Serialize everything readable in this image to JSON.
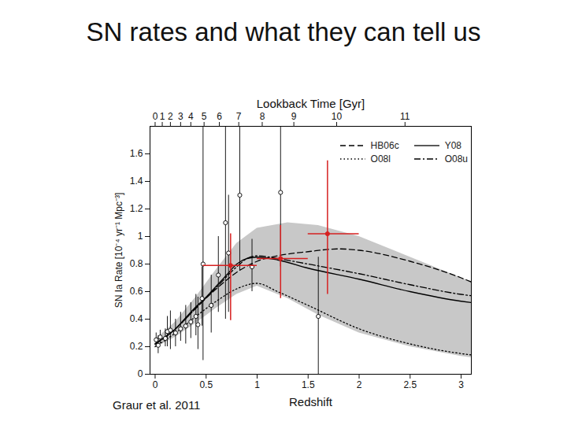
{
  "page_title": "SN rates and what they can tell us",
  "caption": "Graur et al. 2011",
  "chart_data": {
    "type": "line",
    "xlabel": "Redshift",
    "ylabel": "SN Ia Rate [10⁻⁴ yr⁻¹ Mpc⁻³]",
    "x2label": "Lookback Time [Gyr]",
    "xlim": [
      -0.05,
      3.1
    ],
    "xticks": [
      0,
      0.5,
      1,
      1.5,
      2,
      2.5,
      3
    ],
    "x2ticks": [
      {
        "value": 0,
        "label": "0"
      },
      {
        "value": 0.07,
        "label": "1"
      },
      {
        "value": 0.15,
        "label": "2"
      },
      {
        "value": 0.25,
        "label": "3"
      },
      {
        "value": 0.35,
        "label": "4"
      },
      {
        "value": 0.48,
        "label": "5"
      },
      {
        "value": 0.63,
        "label": "6"
      },
      {
        "value": 0.82,
        "label": "7"
      },
      {
        "value": 1.05,
        "label": "8"
      },
      {
        "value": 1.36,
        "label": "9"
      },
      {
        "value": 1.78,
        "label": "10"
      },
      {
        "value": 2.45,
        "label": "11"
      }
    ],
    "ylim": [
      0,
      1.8
    ],
    "yticks": [
      0,
      0.2,
      0.4,
      0.6,
      0.8,
      1,
      1.2,
      1.4,
      1.6
    ],
    "grid": false,
    "legend": "top-right",
    "band": {
      "color": "#c8c8c8",
      "x": [
        0,
        0.2,
        0.4,
        0.6,
        0.8,
        1.0,
        1.3,
        1.6,
        2.0,
        2.5,
        3.0,
        3.1
      ],
      "lower": [
        0.19,
        0.27,
        0.37,
        0.48,
        0.58,
        0.64,
        0.55,
        0.43,
        0.3,
        0.2,
        0.13,
        0.12
      ],
      "upper": [
        0.25,
        0.38,
        0.56,
        0.76,
        0.95,
        1.06,
        1.1,
        1.08,
        1.0,
        0.85,
        0.7,
        0.67
      ]
    },
    "series": [
      {
        "name": "HB06c",
        "color": "#000000",
        "line_style": "dashed",
        "x": [
          0,
          0.2,
          0.4,
          0.6,
          0.8,
          1.0,
          1.2,
          1.5,
          1.8,
          2.0,
          2.5,
          3.0,
          3.1
        ],
        "values": [
          0.22,
          0.33,
          0.48,
          0.62,
          0.74,
          0.82,
          0.86,
          0.89,
          0.91,
          0.9,
          0.82,
          0.7,
          0.67
        ]
      },
      {
        "name": "Y08",
        "color": "#000000",
        "line_style": "solid",
        "x": [
          0,
          0.1,
          0.2,
          0.3,
          0.4,
          0.5,
          0.6,
          0.7,
          0.8,
          0.9,
          1.0,
          1.2,
          1.5,
          2.0,
          2.5,
          3.0,
          3.1
        ],
        "values": [
          0.22,
          0.27,
          0.33,
          0.41,
          0.49,
          0.56,
          0.64,
          0.72,
          0.8,
          0.84,
          0.85,
          0.83,
          0.77,
          0.69,
          0.6,
          0.53,
          0.52
        ]
      },
      {
        "name": "O08l",
        "color": "#000000",
        "line_style": "dotted",
        "x": [
          0,
          0.2,
          0.4,
          0.6,
          0.8,
          1.0,
          1.2,
          1.5,
          2.0,
          2.5,
          3.0,
          3.1
        ],
        "values": [
          0.2,
          0.3,
          0.42,
          0.53,
          0.62,
          0.66,
          0.6,
          0.5,
          0.33,
          0.22,
          0.15,
          0.14
        ]
      },
      {
        "name": "O08u",
        "color": "#000000",
        "line_style": "dashdot",
        "x": [
          0,
          0.2,
          0.4,
          0.6,
          0.8,
          0.9,
          1.0,
          1.2,
          1.5,
          2.0,
          2.5,
          3.0,
          3.1
        ],
        "values": [
          0.22,
          0.33,
          0.48,
          0.63,
          0.78,
          0.84,
          0.86,
          0.84,
          0.8,
          0.73,
          0.65,
          0.58,
          0.57
        ]
      }
    ],
    "points": [
      {
        "type": "scatter",
        "color": "#000000",
        "marker": "open circle",
        "x": [
          0.01,
          0.03,
          0.05,
          0.1,
          0.12,
          0.15,
          0.2,
          0.25,
          0.3,
          0.35,
          0.4,
          0.42,
          0.46,
          0.47,
          0.55,
          0.62,
          0.69,
          0.72,
          0.83,
          0.95,
          1.23,
          1.6
        ],
        "values": [
          0.25,
          0.21,
          0.27,
          0.26,
          0.31,
          0.32,
          0.3,
          0.33,
          0.35,
          0.38,
          0.42,
          0.36,
          0.55,
          0.8,
          0.5,
          0.72,
          1.1,
          0.88,
          1.3,
          0.78,
          1.32,
          0.42
        ],
        "y_low": [
          0.2,
          0.15,
          0.22,
          0.2,
          0.2,
          0.18,
          0.2,
          0.24,
          0.22,
          0.26,
          0.28,
          0.18,
          0.35,
          0.1,
          0.3,
          0.45,
          0.4,
          0.45,
          0.75,
          0.6,
          0.78,
          0.0
        ],
        "y_high": [
          0.3,
          0.28,
          0.32,
          0.33,
          0.42,
          0.46,
          0.4,
          0.45,
          0.5,
          0.52,
          0.58,
          0.56,
          0.78,
          1.9,
          0.72,
          1.0,
          1.9,
          1.3,
          1.9,
          0.98,
          1.9,
          0.85
        ]
      },
      {
        "type": "scatter",
        "color": "#d62020",
        "marker": "filled circle",
        "x": [
          0.74,
          1.23,
          1.69
        ],
        "values": [
          0.79,
          0.84,
          1.02
        ],
        "y_low": [
          0.39,
          0.55,
          0.58
        ],
        "y_high": [
          1.02,
          1.08,
          1.55
        ],
        "x_low": [
          0.47,
          1.0,
          1.5
        ],
        "x_high": [
          1.0,
          1.5,
          2.0
        ]
      }
    ]
  }
}
